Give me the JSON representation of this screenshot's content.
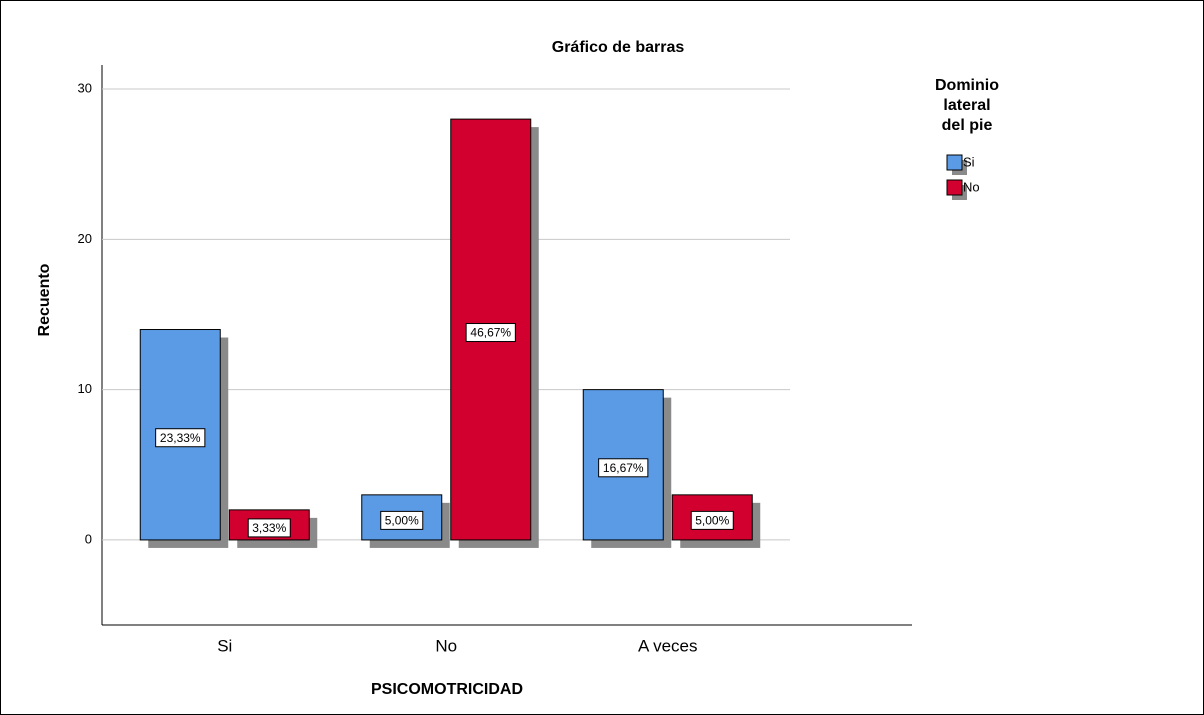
{
  "chart_data": {
    "type": "bar",
    "title": "Gráfico de barras",
    "x_label": "PSICOMOTRICIDAD",
    "y_label": "Recuento",
    "categories": [
      "Si",
      "No",
      "A veces"
    ],
    "legend_title": "Dominio lateral del pie",
    "series": [
      {
        "name": "Si",
        "color": "#5b9be6",
        "values": [
          14,
          3,
          10
        ],
        "percents": [
          23.33,
          5.0,
          16.67
        ],
        "percent_labels": [
          "23,33%",
          "5,00%",
          "16,67%"
        ]
      },
      {
        "name": "No",
        "color": "#d2002e",
        "values": [
          2,
          28,
          3
        ],
        "percents": [
          3.33,
          46.67,
          5.0
        ],
        "percent_labels": [
          "3,33%",
          "46,67%",
          "5,00%"
        ]
      }
    ],
    "ylim": [
      -5.66,
      31.6
    ],
    "yticks": [
      0,
      10,
      20,
      30
    ],
    "grid": true,
    "legend": "right"
  }
}
